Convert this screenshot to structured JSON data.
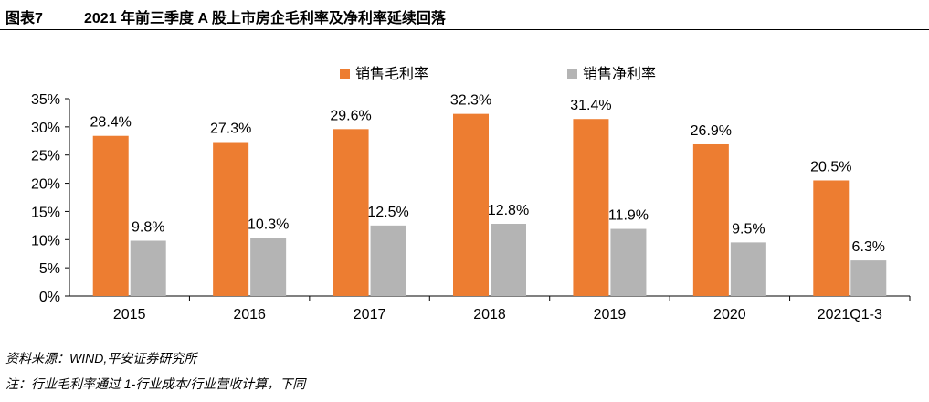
{
  "header": {
    "figure_label": "图表7",
    "title": "2021 年前三季度 A 股上市房企毛利率及净利率延续回落"
  },
  "colors": {
    "gross": "#ED7D31",
    "net": "#B4B4B4",
    "axis": "#000000"
  },
  "chart_data": {
    "type": "bar",
    "categories": [
      "2015",
      "2016",
      "2017",
      "2018",
      "2019",
      "2020",
      "2021Q1-3"
    ],
    "series": [
      {
        "name": "销售毛利率",
        "values": [
          28.4,
          27.3,
          29.6,
          32.3,
          31.4,
          26.9,
          20.5
        ]
      },
      {
        "name": "销售净利率",
        "values": [
          9.8,
          10.3,
          12.5,
          12.8,
          11.9,
          9.5,
          6.3
        ]
      }
    ],
    "data_labels": [
      [
        "28.4%",
        "27.3%",
        "29.6%",
        "32.3%",
        "31.4%",
        "26.9%",
        "20.5%"
      ],
      [
        "9.8%",
        "10.3%",
        "12.5%",
        "12.8%",
        "11.9%",
        "9.5%",
        "6.3%"
      ]
    ],
    "y_ticks": [
      "0%",
      "5%",
      "10%",
      "15%",
      "20%",
      "25%",
      "30%",
      "35%"
    ],
    "ylim": [
      0,
      35
    ],
    "grid": false,
    "legend_position": "top"
  },
  "footer": {
    "source": "资料来源：WIND,平安证券研究所",
    "note": "注：行业毛利率通过 1-行业成本/行业营收计算，下同"
  }
}
